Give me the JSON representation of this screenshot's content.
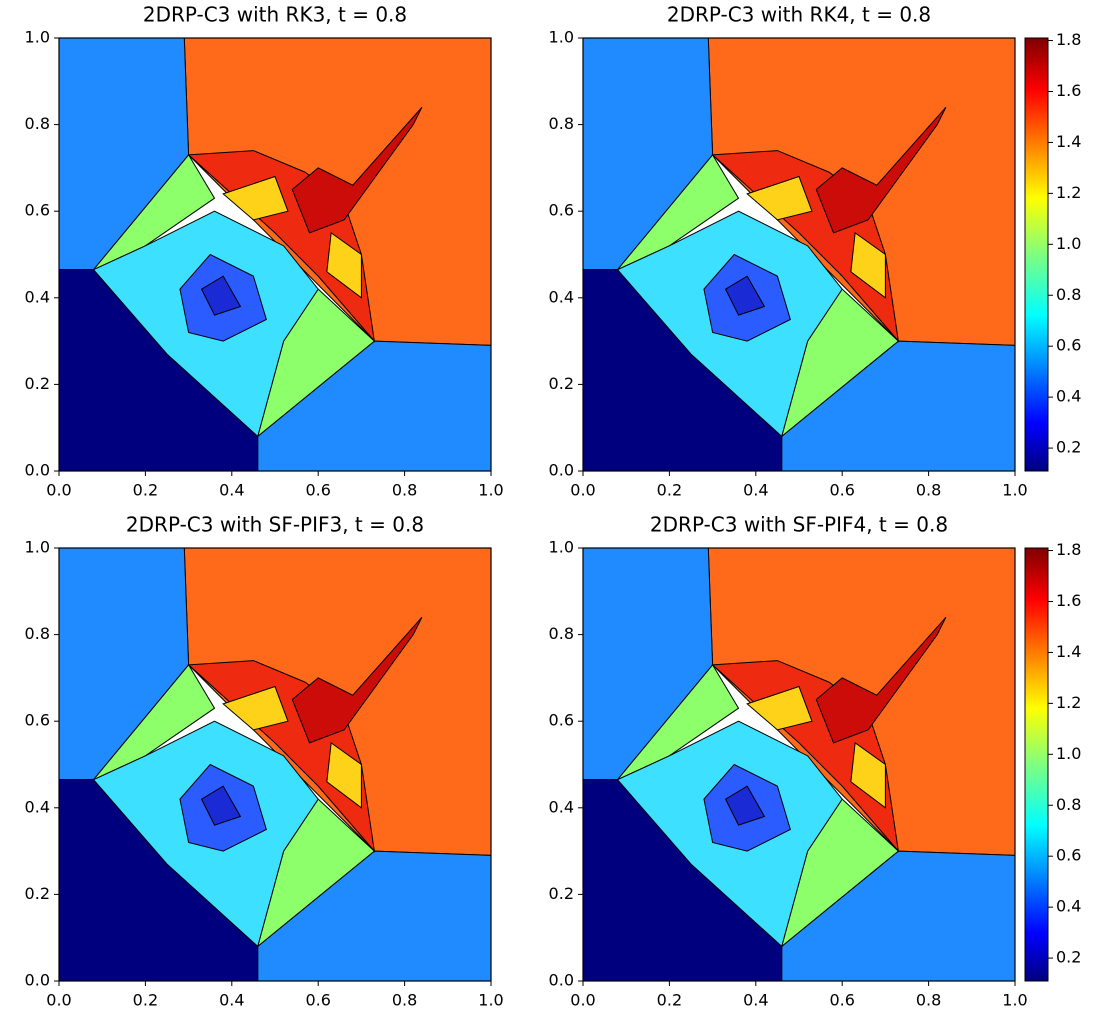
{
  "chart_data": [
    {
      "type": "contour",
      "title": "2DRP-C3 with RK3, t = 0.8",
      "xlim": [
        0,
        1
      ],
      "ylim": [
        0,
        1
      ],
      "xticks": [
        {
          "value": 0,
          "label": "0.0"
        },
        {
          "value": 0.2,
          "label": "0.2"
        },
        {
          "value": 0.4,
          "label": "0.4"
        },
        {
          "value": 0.6,
          "label": "0.6"
        },
        {
          "value": 0.8,
          "label": "0.8"
        },
        {
          "value": 1,
          "label": "1.0"
        }
      ],
      "yticks": [
        {
          "value": 0,
          "label": "0.0"
        },
        {
          "value": 0.2,
          "label": "0.2"
        },
        {
          "value": 0.4,
          "label": "0.4"
        },
        {
          "value": 0.6,
          "label": "0.6"
        },
        {
          "value": 0.8,
          "label": "0.8"
        },
        {
          "value": 1,
          "label": "1.0"
        }
      ],
      "colormap": "jet"
    },
    {
      "type": "contour",
      "title": "2DRP-C3 with RK4, t = 0.8",
      "xlim": [
        0,
        1
      ],
      "ylim": [
        0,
        1
      ],
      "xticks": [
        {
          "value": 0,
          "label": "0.0"
        },
        {
          "value": 0.2,
          "label": "0.2"
        },
        {
          "value": 0.4,
          "label": "0.4"
        },
        {
          "value": 0.6,
          "label": "0.6"
        },
        {
          "value": 0.8,
          "label": "0.8"
        },
        {
          "value": 1,
          "label": "1.0"
        }
      ],
      "yticks": [
        {
          "value": 0,
          "label": "0.0"
        },
        {
          "value": 0.2,
          "label": "0.2"
        },
        {
          "value": 0.4,
          "label": "0.4"
        },
        {
          "value": 0.6,
          "label": "0.6"
        },
        {
          "value": 0.8,
          "label": "0.8"
        },
        {
          "value": 1,
          "label": "1.0"
        }
      ],
      "colormap": "jet",
      "colorbar": {
        "clim": [
          0.11,
          1.81
        ],
        "ticks": [
          {
            "value": 0.2,
            "label": "0.2"
          },
          {
            "value": 0.4,
            "label": "0.4"
          },
          {
            "value": 0.6,
            "label": "0.6"
          },
          {
            "value": 0.8,
            "label": "0.8"
          },
          {
            "value": 1,
            "label": "1.0"
          },
          {
            "value": 1.2,
            "label": "1.2"
          },
          {
            "value": 1.4,
            "label": "1.4"
          },
          {
            "value": 1.6,
            "label": "1.6"
          },
          {
            "value": 1.8,
            "label": "1.8"
          }
        ]
      }
    },
    {
      "type": "contour",
      "title": "2DRP-C3 with SF-PIF3, t = 0.8",
      "xlim": [
        0,
        1
      ],
      "ylim": [
        0,
        1
      ],
      "xticks": [
        {
          "value": 0,
          "label": "0.0"
        },
        {
          "value": 0.2,
          "label": "0.2"
        },
        {
          "value": 0.4,
          "label": "0.4"
        },
        {
          "value": 0.6,
          "label": "0.6"
        },
        {
          "value": 0.8,
          "label": "0.8"
        },
        {
          "value": 1,
          "label": "1.0"
        }
      ],
      "yticks": [
        {
          "value": 0,
          "label": "0.0"
        },
        {
          "value": 0.2,
          "label": "0.2"
        },
        {
          "value": 0.4,
          "label": "0.4"
        },
        {
          "value": 0.6,
          "label": "0.6"
        },
        {
          "value": 0.8,
          "label": "0.8"
        },
        {
          "value": 1,
          "label": "1.0"
        }
      ],
      "colormap": "jet"
    },
    {
      "type": "contour",
      "title": "2DRP-C3 with SF-PIF4, t = 0.8",
      "xlim": [
        0,
        1
      ],
      "ylim": [
        0,
        1
      ],
      "xticks": [
        {
          "value": 0,
          "label": "0.0"
        },
        {
          "value": 0.2,
          "label": "0.2"
        },
        {
          "value": 0.4,
          "label": "0.4"
        },
        {
          "value": 0.6,
          "label": "0.6"
        },
        {
          "value": 0.8,
          "label": "0.8"
        },
        {
          "value": 1,
          "label": "1.0"
        }
      ],
      "yticks": [
        {
          "value": 0,
          "label": "0.0"
        },
        {
          "value": 0.2,
          "label": "0.2"
        },
        {
          "value": 0.4,
          "label": "0.4"
        },
        {
          "value": 0.6,
          "label": "0.6"
        },
        {
          "value": 0.8,
          "label": "0.8"
        },
        {
          "value": 1,
          "label": "1.0"
        }
      ],
      "colormap": "jet",
      "colorbar": {
        "clim": [
          0.11,
          1.81
        ],
        "ticks": [
          {
            "value": 0.2,
            "label": "0.2"
          },
          {
            "value": 0.4,
            "label": "0.4"
          },
          {
            "value": 0.6,
            "label": "0.6"
          },
          {
            "value": 0.8,
            "label": "0.8"
          },
          {
            "value": 1,
            "label": "1.0"
          },
          {
            "value": 1.2,
            "label": "1.2"
          },
          {
            "value": 1.4,
            "label": "1.4"
          },
          {
            "value": 1.6,
            "label": "1.6"
          },
          {
            "value": 1.8,
            "label": "1.8"
          }
        ]
      }
    }
  ]
}
